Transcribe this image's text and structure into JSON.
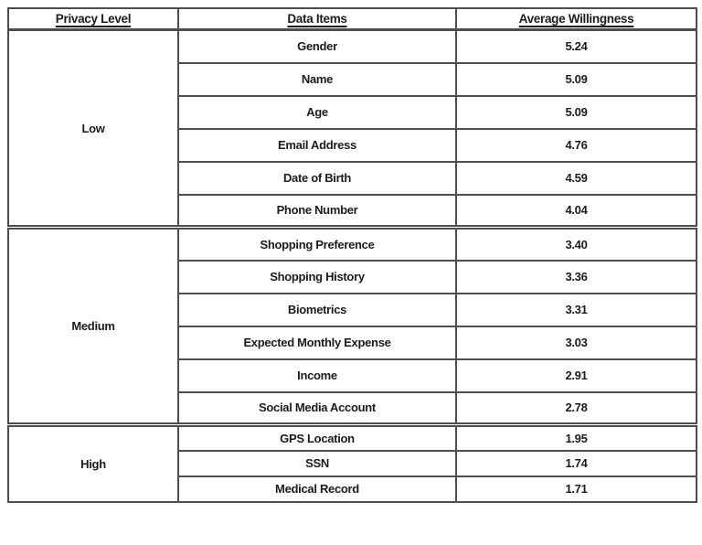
{
  "page": {
    "background": "#ffffff",
    "border_color": "#4d4d4d",
    "text_color": "#1c1c1c"
  },
  "table": {
    "headers": {
      "privacy_level": "Privacy Level",
      "data_items": "Data Items",
      "average_willingness": "Average Willingness"
    },
    "groups": [
      {
        "level": "Low",
        "rows": [
          {
            "item": "Gender",
            "value": "5.24"
          },
          {
            "item": "Name",
            "value": "5.09"
          },
          {
            "item": "Age",
            "value": "5.09"
          },
          {
            "item": "Email Address",
            "value": "4.76"
          },
          {
            "item": "Date of Birth",
            "value": "4.59"
          },
          {
            "item": "Phone Number",
            "value": "4.04"
          }
        ]
      },
      {
        "level": "Medium",
        "rows": [
          {
            "item": "Shopping Preference",
            "value": "3.40"
          },
          {
            "item": "Shopping History",
            "value": "3.36"
          },
          {
            "item": "Biometrics",
            "value": "3.31"
          },
          {
            "item": "Expected Monthly Expense",
            "value": "3.03"
          },
          {
            "item": "Income",
            "value": "2.91"
          },
          {
            "item": "Social Media Account",
            "value": "2.78"
          }
        ]
      },
      {
        "level": "High",
        "rows": [
          {
            "item": "GPS Location",
            "value": "1.95"
          },
          {
            "item": "SSN",
            "value": "1.74"
          },
          {
            "item": "Medical Record",
            "value": "1.71"
          }
        ]
      }
    ]
  },
  "chart_data": {
    "type": "table",
    "title": "",
    "columns": [
      "Privacy Level",
      "Data Items",
      "Average Willingness"
    ],
    "rows": [
      [
        "Low",
        "Gender",
        5.24
      ],
      [
        "Low",
        "Name",
        5.09
      ],
      [
        "Low",
        "Age",
        5.09
      ],
      [
        "Low",
        "Email Address",
        4.76
      ],
      [
        "Low",
        "Date of Birth",
        4.59
      ],
      [
        "Low",
        "Phone Number",
        4.04
      ],
      [
        "Medium",
        "Shopping Preference",
        3.4
      ],
      [
        "Medium",
        "Shopping History",
        3.36
      ],
      [
        "Medium",
        "Biometrics",
        3.31
      ],
      [
        "Medium",
        "Expected Monthly Expense",
        3.03
      ],
      [
        "Medium",
        "Income",
        2.91
      ],
      [
        "Medium",
        "Social Media Account",
        2.78
      ],
      [
        "High",
        "GPS Location",
        1.95
      ],
      [
        "High",
        "SSN",
        1.74
      ],
      [
        "High",
        "Medical Record",
        1.71
      ]
    ]
  }
}
